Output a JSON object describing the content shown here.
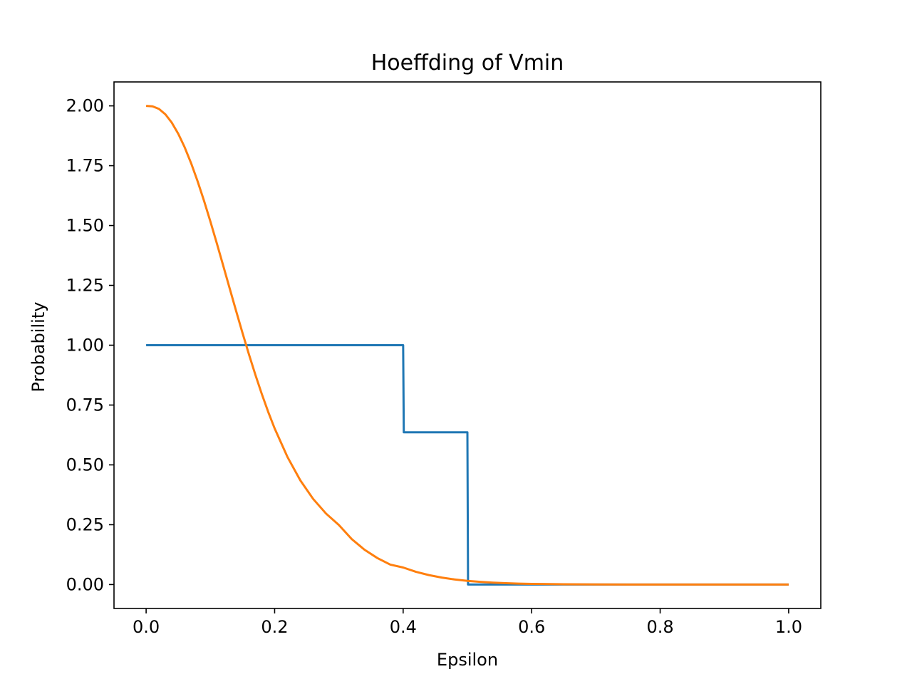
{
  "chart_data": {
    "type": "line",
    "title": "Hoeffding of Vmin",
    "xlabel": "Epsilon",
    "ylabel": "Probability",
    "xlim": [
      -0.05,
      1.05
    ],
    "ylim": [
      -0.1,
      2.1
    ],
    "xticks": [
      0.0,
      0.2,
      0.4,
      0.6,
      0.8,
      1.0
    ],
    "xtick_labels": [
      "0.0",
      "0.2",
      "0.4",
      "0.6",
      "0.8",
      "1.0"
    ],
    "yticks": [
      0.0,
      0.25,
      0.5,
      0.75,
      1.0,
      1.25,
      1.5,
      1.75,
      2.0
    ],
    "ytick_labels": [
      "0.00",
      "0.25",
      "0.50",
      "0.75",
      "1.00",
      "1.25",
      "1.50",
      "1.75",
      "2.00"
    ],
    "grid": false,
    "legend": "none",
    "series": [
      {
        "color": "#1f77b4",
        "x": [
          0.0,
          0.4,
          0.401,
          0.5,
          0.501,
          1.0
        ],
        "y": [
          1.0,
          1.0,
          0.636,
          0.636,
          0.0,
          0.0
        ]
      },
      {
        "color": "#ff7f0e",
        "x": [
          0.0,
          0.01,
          0.02,
          0.03,
          0.04,
          0.05,
          0.06,
          0.07,
          0.08,
          0.09,
          0.1,
          0.11,
          0.12,
          0.13,
          0.14,
          0.15,
          0.16,
          0.17,
          0.18,
          0.19,
          0.2,
          0.22,
          0.24,
          0.26,
          0.28,
          0.3,
          0.32,
          0.34,
          0.36,
          0.38,
          0.4,
          0.42,
          0.44,
          0.46,
          0.48,
          0.5,
          0.52,
          0.54,
          0.56,
          0.58,
          0.6,
          0.65,
          0.7,
          0.75,
          0.8,
          0.85,
          0.9,
          0.95,
          1.0
        ],
        "y": [
          2.0,
          1.998,
          1.9873,
          1.9645,
          1.9297,
          1.8835,
          1.8268,
          1.7605,
          1.6859,
          1.6043,
          1.5171,
          1.4258,
          1.3321,
          1.2375,
          1.1434,
          1.0511,
          0.9619,
          0.8766,
          0.7962,
          0.7212,
          0.6524,
          0.5328,
          0.4352,
          0.3575,
          0.2965,
          0.2486,
          0.1899,
          0.1452,
          0.1104,
          0.0833,
          0.0712,
          0.0532,
          0.0395,
          0.0291,
          0.0213,
          0.0155,
          0.0112,
          0.008,
          0.0057,
          0.004,
          0.0028,
          0.0011,
          0.0004,
          0.0002,
          0.0001,
          0.0,
          0.0,
          0.0,
          0.0
        ]
      }
    ]
  }
}
